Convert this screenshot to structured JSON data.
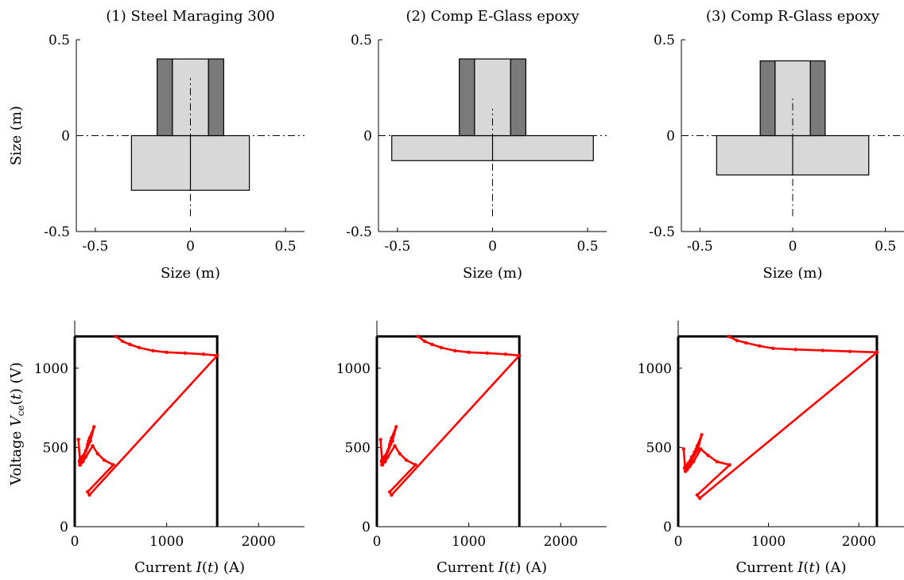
{
  "colors": {
    "axis": "#000000",
    "ring_dark": "#7a7a7a",
    "core_light": "#d8d8d8",
    "trace": "#ff0000",
    "soa_box": "#000000"
  },
  "chart_data": [
    {
      "type": "geometry",
      "title": "(1) Steel Maraging 300",
      "xlabel": "Size (m)",
      "ylabel": "Size (m)",
      "xlim": [
        -0.6,
        0.6
      ],
      "ylim": [
        -0.5,
        0.5
      ],
      "xticks": [
        "-0.5",
        "0",
        "0.5"
      ],
      "yticks": [
        "-0.5",
        "0",
        "0.5"
      ],
      "outer_rects": [
        [
          -0.175,
          -0.095,
          0,
          0.4
        ],
        [
          0.095,
          0.175,
          0,
          0.4
        ]
      ],
      "inner_rect": [
        -0.095,
        0.095,
        0,
        0.4
      ],
      "base_rect": [
        -0.31,
        0.31,
        -0.285,
        0
      ],
      "vline": [
        -0.42,
        0.3
      ]
    },
    {
      "type": "geometry",
      "title": "(2) Comp E-Glass epoxy",
      "xlabel": "Size (m)",
      "ylabel": "",
      "xlim": [
        -0.6,
        0.6
      ],
      "ylim": [
        -0.5,
        0.5
      ],
      "xticks": [
        "-0.5",
        "0",
        "0.5"
      ],
      "yticks": [
        "-0.5",
        "0",
        "0.5"
      ],
      "outer_rects": [
        [
          -0.175,
          -0.095,
          0,
          0.4
        ],
        [
          0.095,
          0.175,
          0,
          0.4
        ]
      ],
      "inner_rect": [
        -0.095,
        0.095,
        0,
        0.4
      ],
      "base_rect": [
        -0.53,
        0.53,
        -0.13,
        0
      ],
      "vline": [
        -0.42,
        0.14
      ]
    },
    {
      "type": "geometry",
      "title": "(3) Comp R-Glass epoxy",
      "xlabel": "Size (m)",
      "ylabel": "",
      "xlim": [
        -0.6,
        0.6
      ],
      "ylim": [
        -0.5,
        0.5
      ],
      "xticks": [
        "-0.5",
        "0",
        "0.5"
      ],
      "yticks": [
        "-0.5",
        "0",
        "0.5"
      ],
      "outer_rects": [
        [
          -0.175,
          -0.095,
          0,
          0.39
        ],
        [
          0.095,
          0.175,
          0,
          0.39
        ]
      ],
      "inner_rect": [
        -0.095,
        0.095,
        0,
        0.39
      ],
      "base_rect": [
        -0.41,
        0.41,
        -0.205,
        0
      ],
      "vline": [
        -0.42,
        0.21
      ]
    },
    {
      "type": "line",
      "title": "",
      "xlabel": "Current I(t) (A)",
      "ylabel": "Voltage Vce(t) (V)",
      "xlim": [
        0,
        2500
      ],
      "ylim": [
        0,
        1300
      ],
      "xticks": [
        "0",
        "1000",
        "2000"
      ],
      "yticks": [
        "0",
        "500",
        "1000"
      ],
      "soa_box": [
        1550,
        1200
      ],
      "x": [
        450,
        520,
        600,
        700,
        850,
        1000,
        1200,
        1400,
        1550,
        160,
        140,
        420,
        320,
        250,
        195,
        120,
        90,
        65,
        55,
        95,
        170,
        210,
        160,
        150,
        140,
        120,
        80,
        55,
        50,
        60,
        40
      ],
      "y": [
        1200,
        1170,
        1150,
        1130,
        1110,
        1100,
        1095,
        1088,
        1080,
        200,
        220,
        390,
        420,
        460,
        510,
        440,
        410,
        400,
        390,
        440,
        540,
        630,
        560,
        540,
        520,
        480,
        440,
        420,
        410,
        390,
        550
      ]
    },
    {
      "type": "line",
      "title": "",
      "xlabel": "Current I(t) (A)",
      "ylabel": "",
      "xlim": [
        0,
        2500
      ],
      "ylim": [
        0,
        1300
      ],
      "xticks": [
        "0",
        "1000",
        "2000"
      ],
      "yticks": [
        "0",
        "500",
        "1000"
      ],
      "soa_box": [
        1550,
        1200
      ],
      "x": [
        450,
        520,
        600,
        700,
        850,
        1000,
        1200,
        1400,
        1550,
        160,
        140,
        420,
        320,
        250,
        195,
        120,
        90,
        65,
        55,
        95,
        170,
        210,
        160,
        150,
        140,
        120,
        80,
        55,
        50,
        60,
        40
      ],
      "y": [
        1200,
        1170,
        1150,
        1130,
        1110,
        1100,
        1095,
        1088,
        1080,
        200,
        220,
        390,
        420,
        460,
        510,
        440,
        410,
        400,
        390,
        440,
        540,
        630,
        560,
        540,
        520,
        480,
        440,
        420,
        410,
        390,
        550
      ]
    },
    {
      "type": "line",
      "title": "",
      "xlabel": "Current I(t) (A)",
      "ylabel": "",
      "xlim": [
        0,
        2500
      ],
      "ylim": [
        0,
        1300
      ],
      "xticks": [
        "0",
        "1000",
        "2000"
      ],
      "yticks": [
        "0",
        "500",
        "1000"
      ],
      "soa_box": [
        2200,
        1200
      ],
      "x": [
        560,
        650,
        750,
        900,
        1050,
        1300,
        1600,
        1900,
        2200,
        240,
        210,
        570,
        430,
        330,
        250,
        170,
        130,
        100,
        80,
        120,
        220,
        260,
        210,
        200,
        180,
        150,
        110,
        80,
        70,
        80,
        60
      ],
      "y": [
        1200,
        1175,
        1160,
        1140,
        1125,
        1118,
        1112,
        1106,
        1100,
        180,
        200,
        390,
        410,
        450,
        490,
        410,
        380,
        360,
        350,
        390,
        490,
        580,
        510,
        490,
        470,
        440,
        400,
        380,
        370,
        350,
        490
      ]
    }
  ]
}
